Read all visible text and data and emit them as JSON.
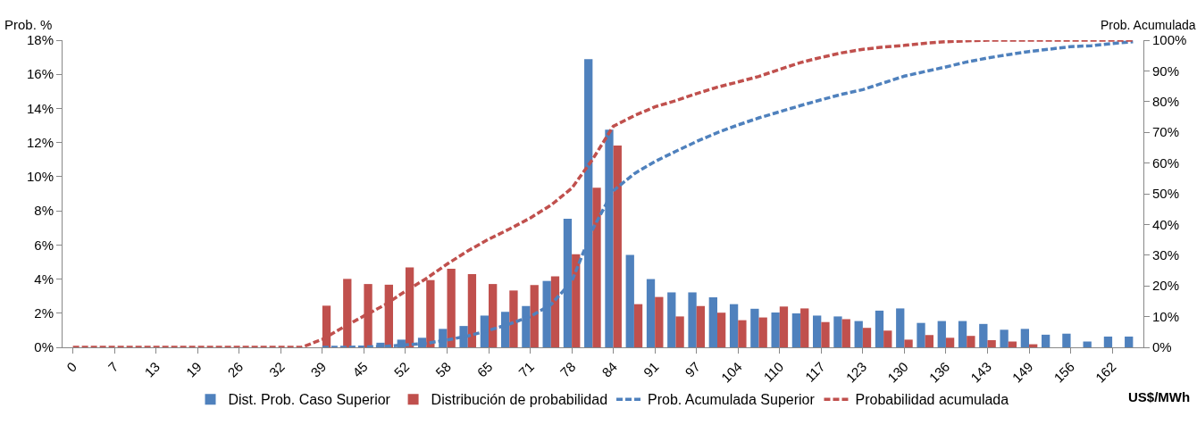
{
  "chart_data": {
    "type": "bar",
    "xlabel": "US$/MWh",
    "ylabel": "Prob. %",
    "y2label": "Prob. Acumulada",
    "categories": [
      "0",
      null,
      "7",
      null,
      "13",
      null,
      "19",
      null,
      "26",
      null,
      "32",
      null,
      "39",
      null,
      "45",
      null,
      "52",
      null,
      "58",
      null,
      "65",
      null,
      "71",
      null,
      "78",
      null,
      "84",
      null,
      "91",
      null,
      "97",
      null,
      "104",
      null,
      "110",
      null,
      "117",
      null,
      "123",
      null,
      "130",
      null,
      "136",
      null,
      "143",
      null,
      "149",
      null,
      "156",
      null,
      "162",
      null
    ],
    "series": [
      {
        "name": "Dist. Prob. Caso Superior",
        "color": "#4f81bd",
        "values": [
          0,
          0,
          0,
          0,
          0,
          0,
          0,
          0,
          0,
          0,
          0,
          0,
          0,
          0,
          null,
          0.27,
          0.45,
          0.56,
          1.08,
          1.25,
          1.86,
          2.08,
          2.42,
          3.89,
          7.54,
          16.89,
          12.75,
          5.42,
          4.0,
          3.22,
          3.22,
          2.93,
          2.53,
          2.26,
          2.04,
          1.99,
          1.86,
          1.81,
          1.54,
          2.15,
          2.28,
          1.43,
          1.54,
          1.54,
          1.37,
          1.03,
          1.08,
          0.74,
          0.8,
          0.34,
          0.63,
          0.63
        ]
      },
      {
        "name": "Distribución de probabilidad",
        "color": "#c0504d",
        "values": [
          0,
          0,
          0,
          0,
          0,
          0,
          0,
          0,
          0,
          0,
          0,
          0,
          2.44,
          4.01,
          3.71,
          3.67,
          4.68,
          3.94,
          4.61,
          4.29,
          3.71,
          3.33,
          3.65,
          4.16,
          5.46,
          9.35,
          11.83,
          2.53,
          2.95,
          1.81,
          2.42,
          2.03,
          1.59,
          1.75,
          2.39,
          2.28,
          1.48,
          1.65,
          1.14,
          0.98,
          0.45,
          0.72,
          0.56,
          0.67,
          0.42,
          0.34,
          0.18,
          0,
          0,
          0,
          0,
          0
        ]
      },
      {
        "name": "Prob. Acumulada Superior",
        "color": "#4f81bd",
        "type": "line",
        "axis": "y2",
        "line_style": "dashed",
        "values": [
          null,
          null,
          null,
          null,
          null,
          null,
          null,
          null,
          null,
          null,
          null,
          null,
          0,
          0,
          0.1,
          0.3,
          0.8,
          1.3,
          2.4,
          3.7,
          5.5,
          7.6,
          10.0,
          13.9,
          21.5,
          38.4,
          51.0,
          56.5,
          60.5,
          63.8,
          67.0,
          69.9,
          72.4,
          74.7,
          76.7,
          78.7,
          80.6,
          82.4,
          83.9,
          86.1,
          88.3,
          89.8,
          91.3,
          92.9,
          94.2,
          95.3,
          96.3,
          97.1,
          97.9,
          98.2,
          98.9,
          99.5
        ]
      },
      {
        "name": "Probabilidad acumulada",
        "color": "#c0504d",
        "type": "line",
        "axis": "y2",
        "line_style": "dashed",
        "values": [
          0,
          0,
          0,
          0,
          0,
          0,
          0,
          0,
          0,
          0,
          0,
          0,
          2.6,
          6.5,
          10.2,
          13.8,
          18.3,
          22.4,
          27.1,
          31.4,
          35.2,
          38.5,
          42.1,
          46.3,
          51.8,
          61.2,
          72.0,
          75.4,
          78.3,
          80.3,
          82.6,
          84.7,
          86.4,
          88.2,
          90.5,
          92.7,
          94.4,
          95.9,
          97.0,
          97.8,
          98.3,
          99.0,
          99.5,
          99.8,
          100,
          100,
          100,
          100,
          100,
          100,
          100,
          100
        ]
      }
    ],
    "ylim": [
      0,
      18
    ],
    "yticks": [
      {
        "value": 0,
        "label": "0%"
      },
      {
        "value": 2,
        "label": "2%"
      },
      {
        "value": 4,
        "label": "4%"
      },
      {
        "value": 6,
        "label": "6%"
      },
      {
        "value": 8,
        "label": "8%"
      },
      {
        "value": 10,
        "label": "10%"
      },
      {
        "value": 12,
        "label": "12%"
      },
      {
        "value": 14,
        "label": "14%"
      },
      {
        "value": 16,
        "label": "16%"
      },
      {
        "value": 18,
        "label": "18%"
      }
    ],
    "y2lim": [
      0,
      100
    ],
    "y2ticks": [
      {
        "value": 0,
        "label": "0%"
      },
      {
        "value": 10,
        "label": "10%"
      },
      {
        "value": 20,
        "label": "20%"
      },
      {
        "value": 30,
        "label": "30%"
      },
      {
        "value": 40,
        "label": "40%"
      },
      {
        "value": 50,
        "label": "50%"
      },
      {
        "value": 60,
        "label": "60%"
      },
      {
        "value": 70,
        "label": "70%"
      },
      {
        "value": 80,
        "label": "80%"
      },
      {
        "value": 90,
        "label": "90%"
      },
      {
        "value": 100,
        "label": "100%"
      }
    ],
    "legend": "bottom",
    "marker": "none"
  }
}
